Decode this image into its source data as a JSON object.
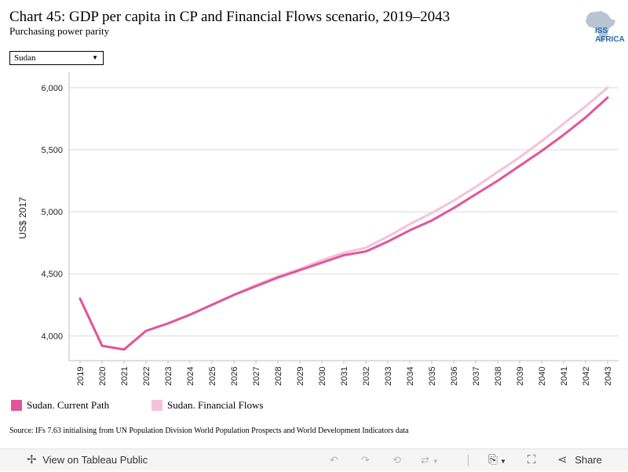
{
  "header": {
    "title": "Chart 45: GDP per capita in CP and Financial Flows scenario, 2019–2043",
    "subtitle": "Purchasing power parity",
    "logo_text": "ISS AFRICA"
  },
  "filter": {
    "selected": "Sudan"
  },
  "chart_data": {
    "type": "line",
    "title": "Chart 45: GDP per capita in CP and Financial Flows scenario, 2019–2043",
    "subtitle": "Purchasing power parity",
    "xlabel": "",
    "ylabel": "US$ 2017",
    "x": [
      2019,
      2020,
      2021,
      2022,
      2023,
      2024,
      2025,
      2026,
      2027,
      2028,
      2029,
      2030,
      2031,
      2032,
      2033,
      2034,
      2035,
      2036,
      2037,
      2038,
      2039,
      2040,
      2041,
      2042,
      2043
    ],
    "ylim": [
      3800,
      6100
    ],
    "yticks": [
      4000,
      4500,
      5000,
      5500,
      6000
    ],
    "ytick_labels": [
      "4,000",
      "4,500",
      "5,000",
      "5,500",
      "6,000"
    ],
    "grid": true,
    "legend_position": "bottom-left",
    "series": [
      {
        "name": "Sudan. Financial Flows",
        "color": "#f4c2da",
        "values": [
          4300,
          3920,
          3890,
          4040,
          4100,
          4170,
          4250,
          4330,
          4410,
          4480,
          4540,
          4610,
          4670,
          4710,
          4800,
          4900,
          4990,
          5090,
          5200,
          5320,
          5440,
          5570,
          5710,
          5850,
          6000
        ]
      },
      {
        "name": "Sudan. Current Path",
        "color": "#e2559a",
        "values": [
          4300,
          3920,
          3890,
          4040,
          4100,
          4170,
          4250,
          4330,
          4400,
          4470,
          4530,
          4590,
          4650,
          4680,
          4760,
          4850,
          4930,
          5030,
          5140,
          5250,
          5370,
          5490,
          5620,
          5760,
          5920
        ]
      }
    ]
  },
  "legend": [
    {
      "label": "Sudan. Current Path",
      "color": "#e2559a"
    },
    {
      "label": "Sudan. Financial Flows",
      "color": "#f4c2da"
    }
  ],
  "source": "Source: IFs 7.63 initialising from UN Population Division World Population Prospects and World Development Indicators data",
  "toolbar": {
    "view_label": "View on Tableau Public",
    "share_label": "Share"
  }
}
